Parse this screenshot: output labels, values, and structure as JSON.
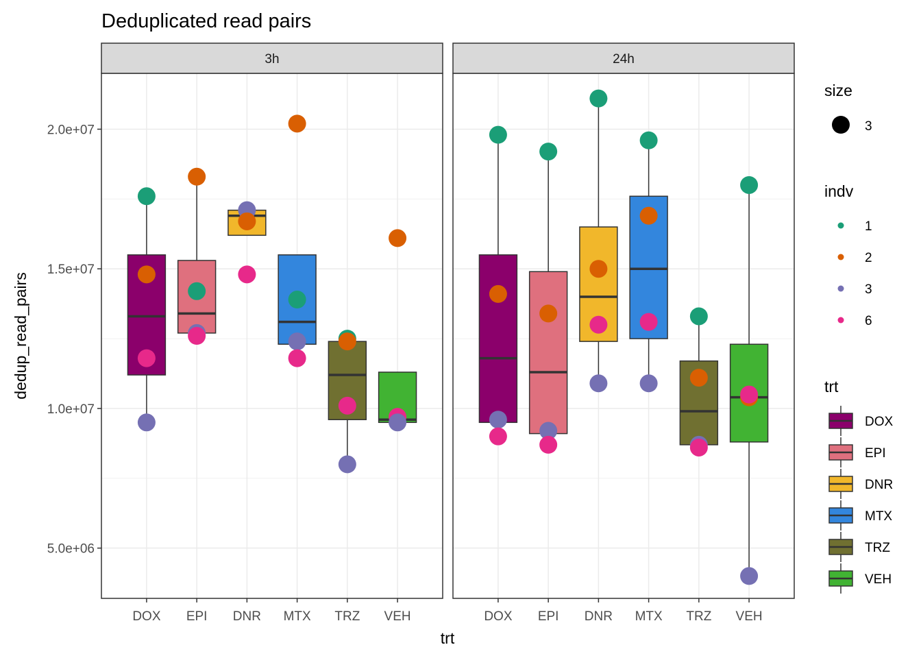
{
  "chart_data": {
    "type": "box",
    "title": "Deduplicated read pairs",
    "xlabel": "trt",
    "ylabel": "dedup_read_pairs",
    "ylim": [
      3200000,
      22000000
    ],
    "yticks": [
      {
        "value": 5000000,
        "label": "5.0e+06"
      },
      {
        "value": 10000000,
        "label": "1.0e+07"
      },
      {
        "value": 15000000,
        "label": "1.5e+07"
      },
      {
        "value": 20000000,
        "label": "2.0e+07"
      }
    ],
    "grid": true,
    "categories": [
      "DOX",
      "EPI",
      "DNR",
      "MTX",
      "TRZ",
      "VEH"
    ],
    "panels": [
      {
        "label": "3h",
        "boxes": [
          {
            "trt": "DOX",
            "q1": 11200000,
            "median": 13300000,
            "q3": 15500000,
            "whisker_low": 9400000,
            "whisker_high": 17600000
          },
          {
            "trt": "EPI",
            "q1": 12700000,
            "median": 13400000,
            "q3": 15300000,
            "whisker_low": 12700000,
            "whisker_high": 18300000
          },
          {
            "trt": "DNR",
            "q1": 16200000,
            "median": 16900000,
            "q3": 17100000,
            "whisker_low": 16200000,
            "whisker_high": 17100000
          },
          {
            "trt": "MTX",
            "q1": 12300000,
            "median": 13100000,
            "q3": 15500000,
            "whisker_low": 12300000,
            "whisker_high": 15500000
          },
          {
            "trt": "TRZ",
            "q1": 9600000,
            "median": 11200000,
            "q3": 12400000,
            "whisker_low": 8000000,
            "whisker_high": 12400000
          },
          {
            "trt": "VEH",
            "q1": 9500000,
            "median": 9600000,
            "q3": 11300000,
            "whisker_low": 9500000,
            "whisker_high": 11300000
          }
        ],
        "points": [
          {
            "trt": "DOX",
            "indv": "1",
            "y": 17600000
          },
          {
            "trt": "DOX",
            "indv": "2",
            "y": 14800000
          },
          {
            "trt": "DOX",
            "indv": "6",
            "y": 11800000
          },
          {
            "trt": "DOX",
            "indv": "3",
            "y": 9500000
          },
          {
            "trt": "EPI",
            "indv": "2",
            "y": 18300000
          },
          {
            "trt": "EPI",
            "indv": "1",
            "y": 14200000
          },
          {
            "trt": "EPI",
            "indv": "3",
            "y": 12700000
          },
          {
            "trt": "EPI",
            "indv": "6",
            "y": 12600000
          },
          {
            "trt": "DNR",
            "indv": "3",
            "y": 17100000
          },
          {
            "trt": "DNR",
            "indv": "2",
            "y": 16700000
          },
          {
            "trt": "DNR",
            "indv": "6",
            "y": 14800000
          },
          {
            "trt": "MTX",
            "indv": "2",
            "y": 20200000
          },
          {
            "trt": "MTX",
            "indv": "1",
            "y": 13900000
          },
          {
            "trt": "MTX",
            "indv": "3",
            "y": 12400000
          },
          {
            "trt": "MTX",
            "indv": "6",
            "y": 11800000
          },
          {
            "trt": "TRZ",
            "indv": "1",
            "y": 12500000
          },
          {
            "trt": "TRZ",
            "indv": "2",
            "y": 12400000
          },
          {
            "trt": "TRZ",
            "indv": "6",
            "y": 10100000
          },
          {
            "trt": "TRZ",
            "indv": "3",
            "y": 8000000
          },
          {
            "trt": "VEH",
            "indv": "2",
            "y": 16100000
          },
          {
            "trt": "VEH",
            "indv": "6",
            "y": 9700000
          },
          {
            "trt": "VEH",
            "indv": "3",
            "y": 9500000
          }
        ]
      },
      {
        "label": "24h",
        "boxes": [
          {
            "trt": "DOX",
            "q1": 9500000,
            "median": 11800000,
            "q3": 15500000,
            "whisker_low": 9000000,
            "whisker_high": 19800000
          },
          {
            "trt": "EPI",
            "q1": 9100000,
            "median": 11300000,
            "q3": 14900000,
            "whisker_low": 8700000,
            "whisker_high": 19200000
          },
          {
            "trt": "DNR",
            "q1": 12400000,
            "median": 14000000,
            "q3": 16500000,
            "whisker_low": 10900000,
            "whisker_high": 21100000
          },
          {
            "trt": "MTX",
            "q1": 12500000,
            "median": 15000000,
            "q3": 17600000,
            "whisker_low": 10900000,
            "whisker_high": 19600000
          },
          {
            "trt": "TRZ",
            "q1": 8700000,
            "median": 9900000,
            "q3": 11700000,
            "whisker_low": 8600000,
            "whisker_high": 13300000
          },
          {
            "trt": "VEH",
            "q1": 8800000,
            "median": 10400000,
            "q3": 12300000,
            "whisker_low": 4000000,
            "whisker_high": 18000000
          }
        ],
        "points": [
          {
            "trt": "DOX",
            "indv": "1",
            "y": 19800000
          },
          {
            "trt": "DOX",
            "indv": "2",
            "y": 14100000
          },
          {
            "trt": "DOX",
            "indv": "3",
            "y": 9600000
          },
          {
            "trt": "DOX",
            "indv": "6",
            "y": 9000000
          },
          {
            "trt": "EPI",
            "indv": "1",
            "y": 19200000
          },
          {
            "trt": "EPI",
            "indv": "2",
            "y": 13400000
          },
          {
            "trt": "EPI",
            "indv": "3",
            "y": 9200000
          },
          {
            "trt": "EPI",
            "indv": "6",
            "y": 8700000
          },
          {
            "trt": "DNR",
            "indv": "1",
            "y": 21100000
          },
          {
            "trt": "DNR",
            "indv": "2",
            "y": 15000000
          },
          {
            "trt": "DNR",
            "indv": "6",
            "y": 13000000
          },
          {
            "trt": "DNR",
            "indv": "3",
            "y": 10900000
          },
          {
            "trt": "MTX",
            "indv": "1",
            "y": 19600000
          },
          {
            "trt": "MTX",
            "indv": "2",
            "y": 16900000
          },
          {
            "trt": "MTX",
            "indv": "6",
            "y": 13100000
          },
          {
            "trt": "MTX",
            "indv": "3",
            "y": 10900000
          },
          {
            "trt": "TRZ",
            "indv": "1",
            "y": 13300000
          },
          {
            "trt": "TRZ",
            "indv": "2",
            "y": 11100000
          },
          {
            "trt": "TRZ",
            "indv": "3",
            "y": 8700000
          },
          {
            "trt": "TRZ",
            "indv": "6",
            "y": 8600000
          },
          {
            "trt": "VEH",
            "indv": "1",
            "y": 18000000
          },
          {
            "trt": "VEH",
            "indv": "2",
            "y": 10400000
          },
          {
            "trt": "VEH",
            "indv": "6",
            "y": 10500000
          },
          {
            "trt": "VEH",
            "indv": "3",
            "y": 4000000
          }
        ]
      }
    ],
    "trt_colors": {
      "DOX": "#8B006B",
      "EPI": "#DF707E",
      "DNR": "#F1B72B",
      "MTX": "#3386DD",
      "TRZ": "#707031",
      "VEH": "#41B333"
    },
    "indv_colors": {
      "1": "#1B9E77",
      "2": "#D95F02",
      "3": "#7570B3",
      "6": "#E7298A"
    },
    "legends": {
      "size": {
        "title": "size",
        "items": [
          "3"
        ]
      },
      "indv": {
        "title": "indv",
        "items": [
          "1",
          "2",
          "3",
          "6"
        ]
      },
      "trt": {
        "title": "trt",
        "items": [
          "DOX",
          "EPI",
          "DNR",
          "MTX",
          "TRZ",
          "VEH"
        ]
      }
    },
    "legend_position": "right"
  }
}
